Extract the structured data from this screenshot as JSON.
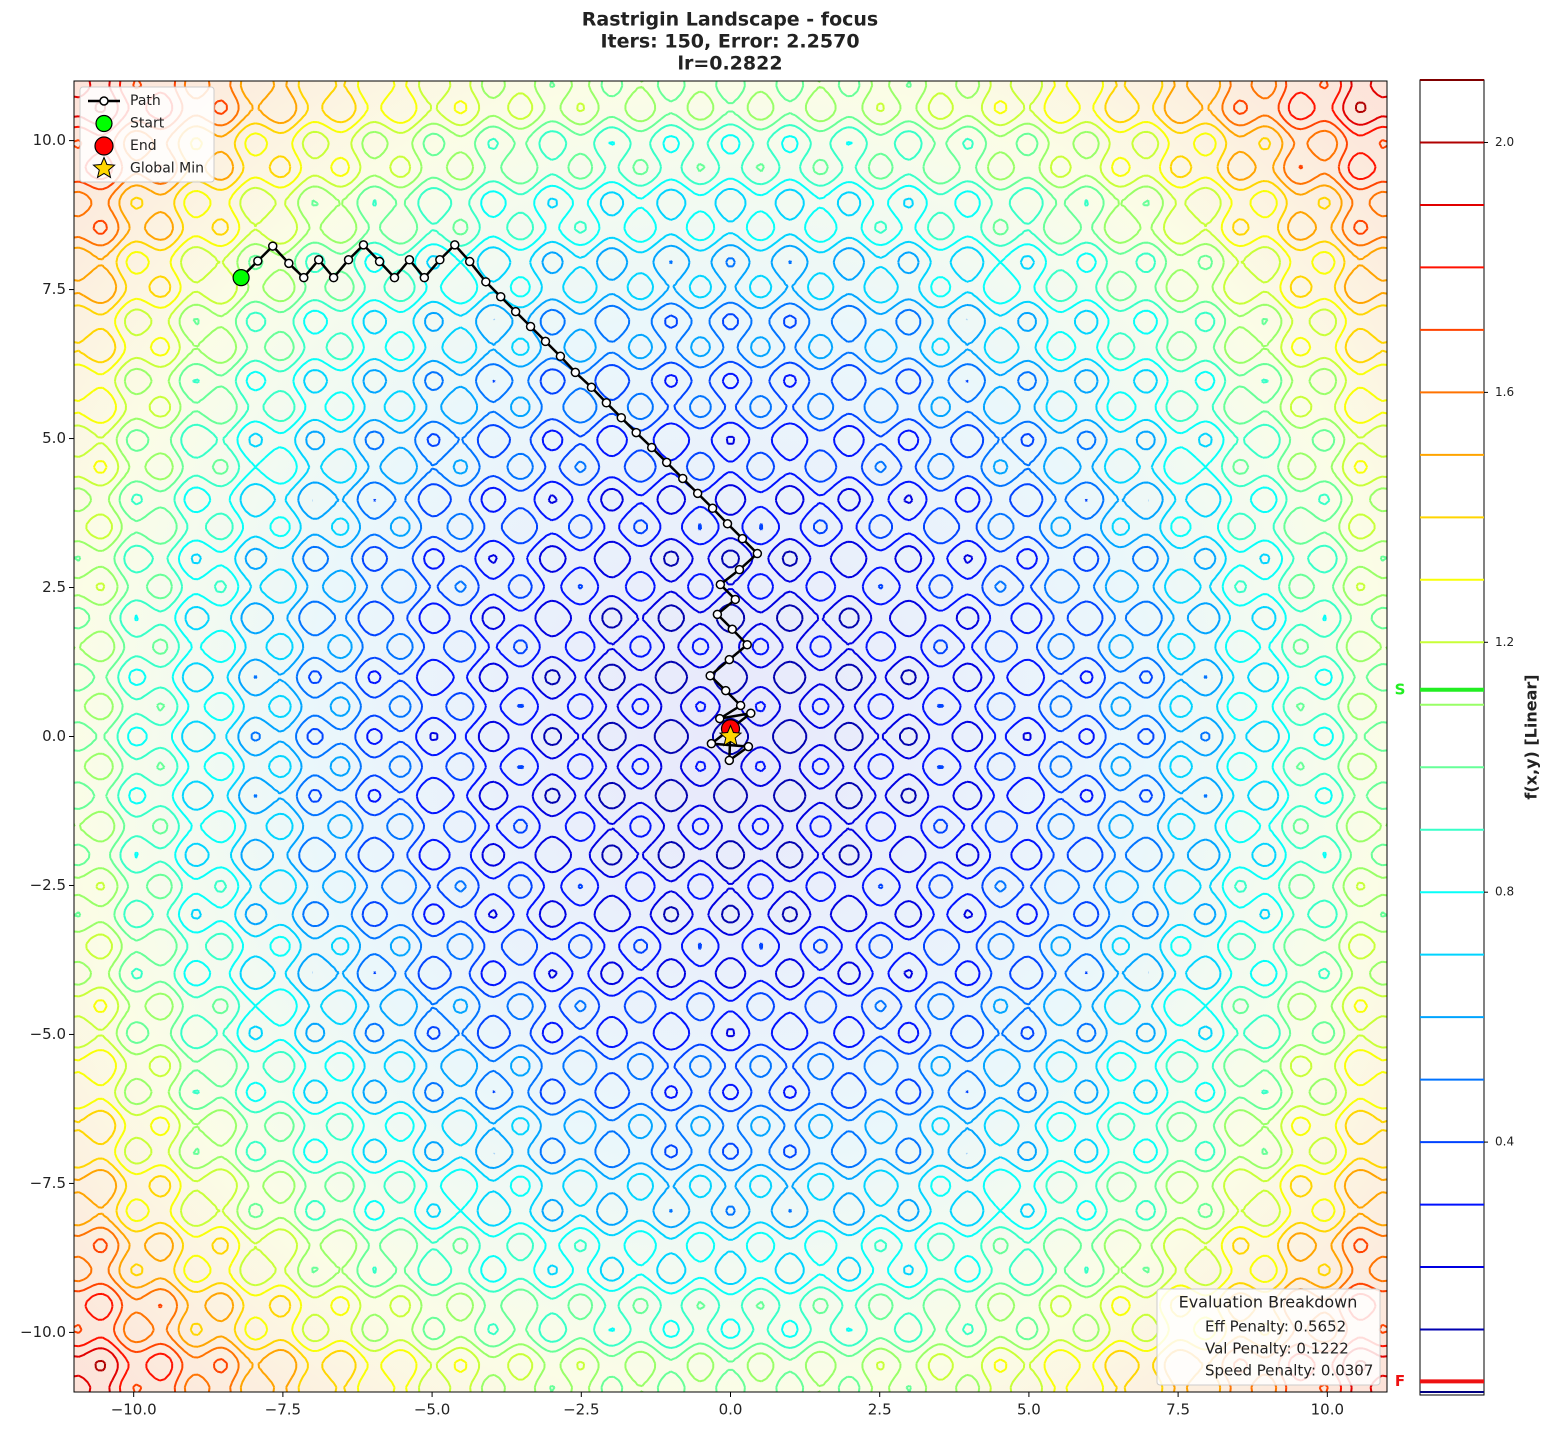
{
  "chart_data": {
    "type": "contour",
    "title": [
      "Rastrigin Landscape - focus",
      "Iters: 150, Error: 2.2570",
      "lr=0.2822"
    ],
    "function": "rastrigin",
    "z_scale": 130,
    "colormap": "jet",
    "levels": [
      0,
      0.1,
      0.2,
      0.3,
      0.4,
      0.5,
      0.6,
      0.7,
      0.8,
      0.9,
      1.0,
      1.1,
      1.2,
      1.3,
      1.4,
      1.5,
      1.6,
      1.7,
      1.8,
      1.9,
      2.0,
      2.1
    ],
    "xlim": [
      -11,
      11
    ],
    "ylim": [
      -11,
      11
    ],
    "xticks": [
      {
        "value": -10,
        "label": "−10.0"
      },
      {
        "value": -7.5,
        "label": "−7.5"
      },
      {
        "value": -5,
        "label": "−5.0"
      },
      {
        "value": -2.5,
        "label": "−2.5"
      },
      {
        "value": 0,
        "label": "0.0"
      },
      {
        "value": 2.5,
        "label": "2.5"
      },
      {
        "value": 5,
        "label": "5.0"
      },
      {
        "value": 7.5,
        "label": "7.5"
      },
      {
        "value": 10,
        "label": "10.0"
      }
    ],
    "yticks": [
      {
        "value": -10,
        "label": "−10.0"
      },
      {
        "value": -7.5,
        "label": "−7.5"
      },
      {
        "value": -5,
        "label": "−5.0"
      },
      {
        "value": -2.5,
        "label": "−2.5"
      },
      {
        "value": 0,
        "label": "0.0"
      },
      {
        "value": 2.5,
        "label": "2.5"
      },
      {
        "value": 5,
        "label": "5.0"
      },
      {
        "value": 7.5,
        "label": "7.5"
      },
      {
        "value": 10,
        "label": "10.0"
      }
    ],
    "legend": "upper left",
    "series": [
      {
        "name": "Path",
        "color": "#000000",
        "x": [
          -8.2,
          -7.92,
          -7.67,
          -7.4,
          -7.15,
          -6.9,
          -6.65,
          -6.4,
          -6.15,
          -5.88,
          -5.63,
          -5.38,
          -5.13,
          -4.87,
          -4.62,
          -4.37,
          -4.1,
          -3.85,
          -3.6,
          -3.35,
          -3.1,
          -2.85,
          -2.6,
          -2.33,
          -2.08,
          -1.83,
          -1.58,
          -1.32,
          -1.07,
          -0.8,
          -0.55,
          -0.3,
          -0.05,
          0.2,
          0.45,
          0.15,
          -0.17,
          0.08,
          -0.22,
          0.03,
          0.28,
          -0.02,
          -0.34,
          -0.08,
          0.17,
          -0.18,
          0.34,
          -0.32,
          0.3,
          -0.02,
          0.0
        ],
        "y": [
          7.7,
          7.98,
          8.23,
          7.94,
          7.7,
          8.0,
          7.7,
          8.0,
          8.25,
          7.97,
          7.7,
          8.0,
          7.7,
          8.0,
          8.25,
          7.97,
          7.63,
          7.38,
          7.13,
          6.88,
          6.63,
          6.38,
          6.11,
          5.86,
          5.6,
          5.35,
          5.1,
          4.85,
          4.6,
          4.33,
          4.08,
          3.83,
          3.57,
          3.32,
          3.07,
          2.8,
          2.55,
          2.3,
          2.05,
          1.8,
          1.54,
          1.29,
          1.02,
          0.77,
          0.52,
          0.3,
          0.39,
          -0.12,
          -0.17,
          -0.4,
          0.13
        ]
      },
      {
        "name": "Start",
        "color": "#00ff00",
        "x": [
          -8.2
        ],
        "y": [
          7.7
        ]
      },
      {
        "name": "End",
        "color": "#ff0000",
        "x": [
          0.0
        ],
        "y": [
          0.13
        ]
      },
      {
        "name": "Global Min",
        "color": "#ffd700",
        "x": [
          0
        ],
        "y": [
          0
        ]
      }
    ],
    "colorbar": {
      "label": "f(x,y) [Linear]",
      "lim": [
        0,
        2.1
      ],
      "ticks": [
        0.4,
        0.8,
        1.2,
        1.6,
        {
          "value": 2,
          "label": "2.0"
        }
      ],
      "start_label": "S",
      "start_value": 1.124,
      "start_color": "#22ee22",
      "end_label": "F",
      "end_value": 0.017,
      "end_color": "#ee1111"
    },
    "annotation": {
      "title": "Evaluation Breakdown",
      "lines": [
        "Eff Penalty: 0.5652",
        "Val Penalty: 0.1222",
        "Speed Penalty: 0.0307"
      ],
      "position": "lower right"
    }
  }
}
